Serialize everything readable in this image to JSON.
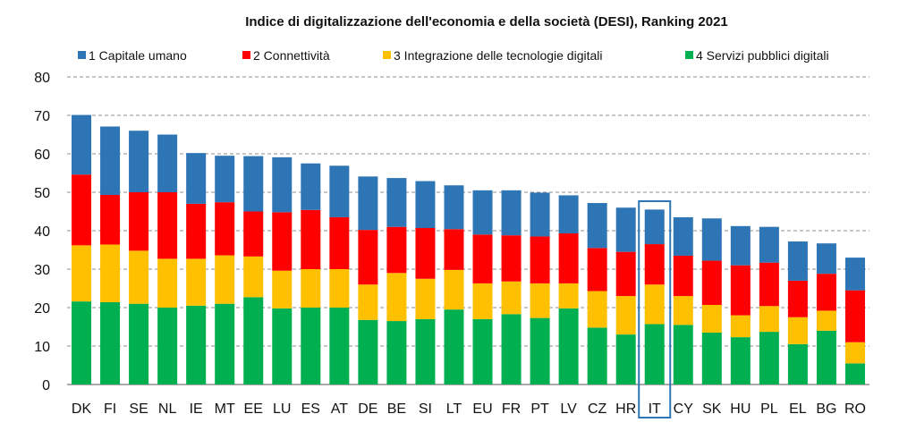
{
  "chart_data": {
    "type": "bar",
    "stacked": true,
    "title": "Indice di digitalizzazione dell'economia e della società (DESI), Ranking 2021",
    "xlabel": "",
    "ylabel": "",
    "ylim": [
      0,
      80
    ],
    "yticks": [
      0,
      10,
      20,
      30,
      40,
      50,
      60,
      70,
      80
    ],
    "grid": "horizontal dashed",
    "legend_position": "top",
    "highlight": "IT",
    "categories": [
      "DK",
      "FI",
      "SE",
      "NL",
      "IE",
      "MT",
      "EE",
      "LU",
      "ES",
      "AT",
      "DE",
      "BE",
      "SI",
      "LT",
      "EU",
      "FR",
      "PT",
      "LV",
      "CZ",
      "HR",
      "IT",
      "CY",
      "SK",
      "HU",
      "PL",
      "EL",
      "BG",
      "RO"
    ],
    "series": [
      {
        "name": "4 Servizi pubblici digitali",
        "color": "#00b050",
        "values": [
          21.6,
          21.4,
          21.0,
          20.0,
          20.5,
          21.0,
          22.7,
          19.8,
          20.0,
          20.0,
          16.8,
          16.5,
          17.0,
          19.5,
          17.0,
          18.3,
          17.3,
          19.8,
          14.8,
          13.0,
          15.7,
          15.5,
          13.5,
          12.3,
          13.7,
          10.5,
          14.0,
          5.5
        ]
      },
      {
        "name": "3 Integrazione delle tecnologie digitali",
        "color": "#ffc000",
        "values": [
          14.6,
          15.0,
          13.8,
          12.7,
          12.2,
          12.6,
          10.6,
          9.8,
          10.0,
          10.0,
          9.2,
          12.5,
          10.5,
          10.3,
          9.3,
          8.5,
          9.0,
          6.5,
          9.5,
          10.0,
          10.3,
          7.5,
          7.2,
          5.7,
          6.7,
          7.0,
          5.2,
          5.5
        ]
      },
      {
        "name": "2 Connettività",
        "color": "#ff0000",
        "values": [
          18.4,
          12.9,
          15.2,
          17.3,
          14.3,
          13.8,
          11.7,
          15.2,
          15.4,
          13.5,
          14.2,
          12.0,
          13.2,
          10.6,
          12.7,
          12.0,
          12.2,
          13.0,
          11.2,
          11.5,
          10.5,
          10.5,
          11.5,
          13.0,
          11.3,
          9.5,
          9.6,
          13.5
        ]
      },
      {
        "name": "1 Capitale umano",
        "color": "#2e75b6",
        "values": [
          15.5,
          17.8,
          16.0,
          15.0,
          13.2,
          12.1,
          14.4,
          14.3,
          12.1,
          13.4,
          13.9,
          12.7,
          12.2,
          11.4,
          11.5,
          11.7,
          11.4,
          9.9,
          11.7,
          11.5,
          9.0,
          10.0,
          11.0,
          10.2,
          9.3,
          10.2,
          7.9,
          8.5
        ]
      }
    ]
  }
}
